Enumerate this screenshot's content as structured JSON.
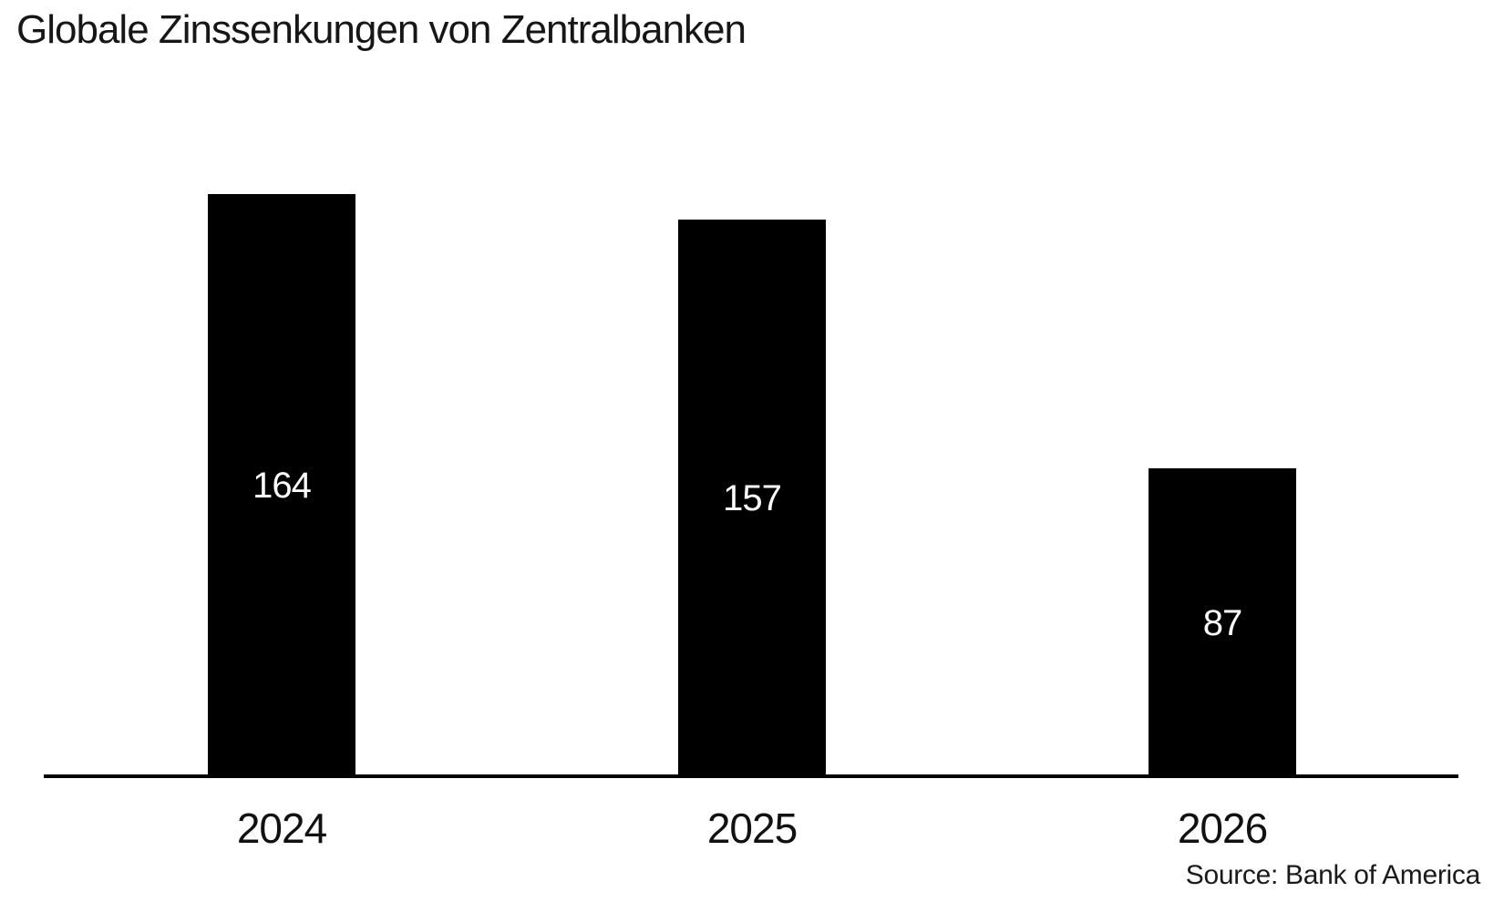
{
  "chart_data": {
    "type": "bar",
    "title": "Globale Zinssenkungen von Zentralbanken",
    "categories": [
      "2024",
      "2025",
      "2026"
    ],
    "values": [
      164,
      157,
      87
    ],
    "source": "Source: Bank of America",
    "xlabel": "",
    "ylabel": "",
    "ylim": [
      0,
      170
    ],
    "grid": false,
    "legend": "none",
    "value_labels_position": "inside-center",
    "colors": {
      "bar": "#000000",
      "value_label": "#ffffff",
      "axis_line": "#000000",
      "title_text": "#161616",
      "tick_text": "#111111",
      "source_text": "#1a1a1a",
      "background": "#ffffff"
    }
  }
}
